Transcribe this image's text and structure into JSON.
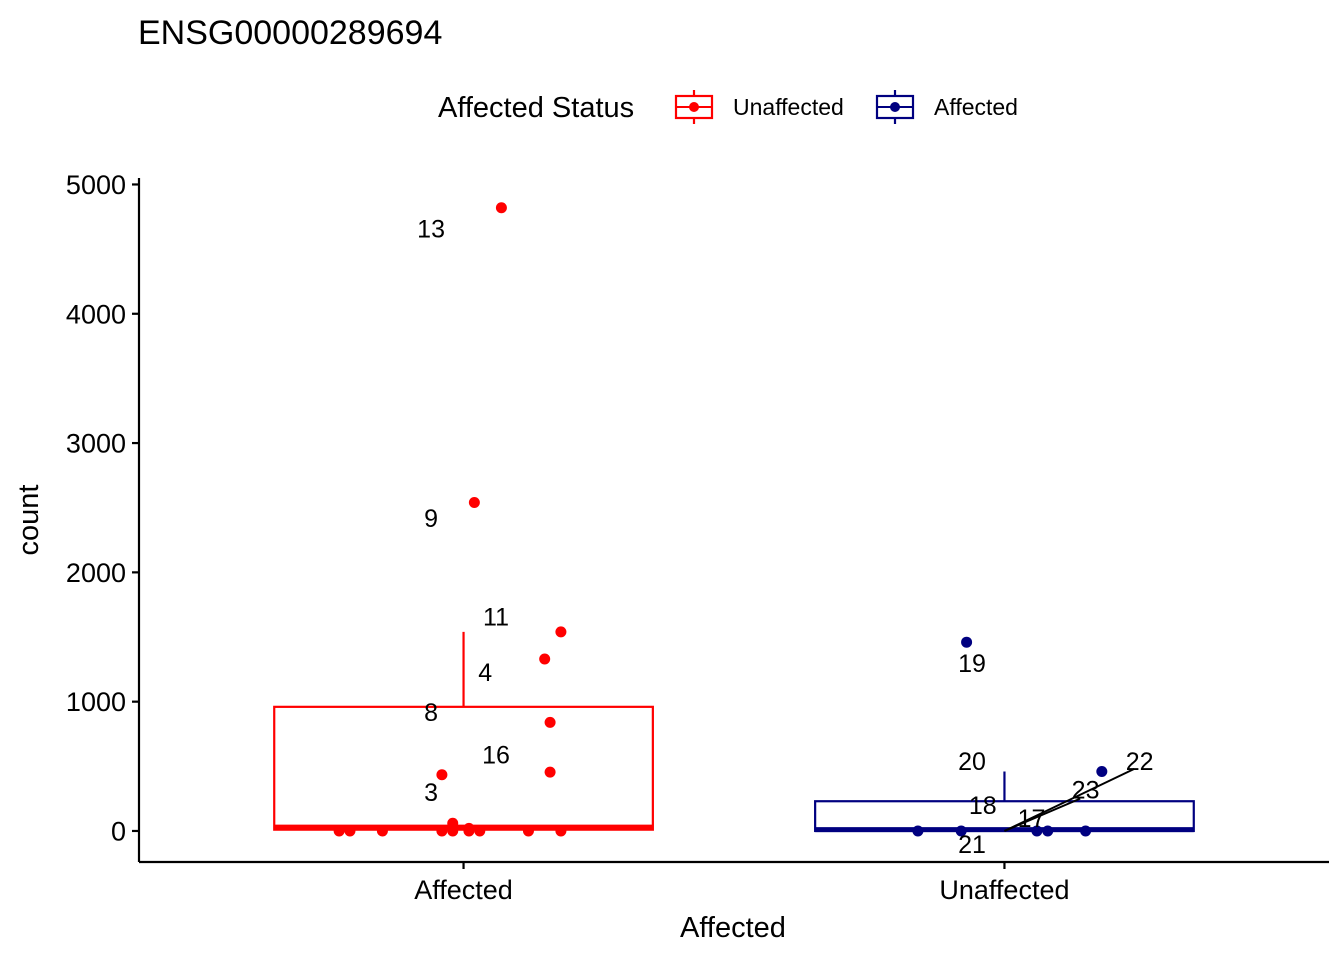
{
  "chart_data": {
    "type": "box",
    "title": "ENSG00000289694",
    "xlabel": "Affected",
    "ylabel": "count",
    "categories": [
      "Affected",
      "Unaffected"
    ],
    "ylim": [
      -240,
      5050
    ],
    "yticks": [
      0,
      1000,
      2000,
      3000,
      4000,
      5000
    ],
    "grid": false,
    "legend": {
      "title": "Affected Status",
      "position": "top",
      "entries": [
        {
          "label": "Unaffected",
          "color": "#FF0000"
        },
        {
          "label": "Affected",
          "color": "#000080"
        }
      ]
    },
    "series": [
      {
        "name": "Unaffected",
        "color": "#FF0000",
        "category": "Affected",
        "box": {
          "q1": 10,
          "median": 30,
          "q3": 960,
          "whisker_low": 0,
          "whisker_high": 1540
        },
        "points": [
          {
            "x": 0.77,
            "y": 0
          },
          {
            "x": 0.79,
            "y": 0
          },
          {
            "x": 0.85,
            "y": 0
          },
          {
            "x": 0.96,
            "y": 0
          },
          {
            "x": 0.98,
            "y": 0
          },
          {
            "x": 1.01,
            "y": 0
          },
          {
            "x": 1.03,
            "y": 0
          },
          {
            "x": 1.12,
            "y": 0
          },
          {
            "x": 1.18,
            "y": 0
          },
          {
            "x": 0.98,
            "y": 60
          },
          {
            "x": 1.01,
            "y": 20
          },
          {
            "x": 0.96,
            "y": 435
          },
          {
            "x": 1.16,
            "y": 455
          },
          {
            "x": 1.16,
            "y": 840
          },
          {
            "x": 1.15,
            "y": 1330
          },
          {
            "x": 1.18,
            "y": 1540
          },
          {
            "x": 1.02,
            "y": 2540
          },
          {
            "x": 1.07,
            "y": 4820
          }
        ],
        "labels": [
          {
            "text": "13",
            "x": 0.94,
            "y": 4660
          },
          {
            "text": "9",
            "x": 0.94,
            "y": 2420
          },
          {
            "text": "11",
            "x": 1.06,
            "y": 1660
          },
          {
            "text": "4",
            "x": 1.04,
            "y": 1230
          },
          {
            "text": "8",
            "x": 0.94,
            "y": 920
          },
          {
            "text": "16",
            "x": 1.06,
            "y": 590
          },
          {
            "text": "3",
            "x": 0.94,
            "y": 300
          }
        ]
      },
      {
        "name": "Affected",
        "color": "#000080",
        "category": "Unaffected",
        "box": {
          "q1": 0,
          "median": 10,
          "q3": 230,
          "whisker_low": 0,
          "whisker_high": 460
        },
        "points": [
          {
            "x": 1.84,
            "y": 0
          },
          {
            "x": 1.92,
            "y": 0
          },
          {
            "x": 2.06,
            "y": 0
          },
          {
            "x": 2.08,
            "y": 0
          },
          {
            "x": 2.15,
            "y": 0
          },
          {
            "x": 2.18,
            "y": 460
          },
          {
            "x": 1.93,
            "y": 1460
          }
        ],
        "labels": [
          {
            "text": "19",
            "x": 1.94,
            "y": 1300
          },
          {
            "text": "20",
            "x": 1.94,
            "y": 540
          },
          {
            "text": "22",
            "x": 2.25,
            "y": 540
          },
          {
            "text": "23",
            "x": 2.15,
            "y": 320
          },
          {
            "text": "18",
            "x": 1.96,
            "y": 200
          },
          {
            "text": "17",
            "x": 2.05,
            "y": 100
          },
          {
            "text": "21",
            "x": 1.94,
            "y": -100
          }
        ]
      }
    ]
  }
}
